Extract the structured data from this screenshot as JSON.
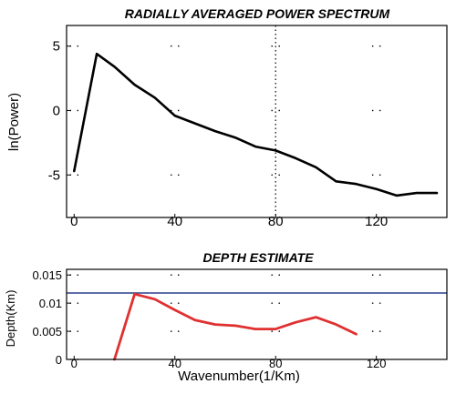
{
  "chart_data": [
    {
      "type": "line",
      "title": "RADIALLY AVERAGED POWER SPECTRUM",
      "xlabel": "",
      "ylabel": "ln(Power)",
      "xlim": [
        -3,
        148
      ],
      "ylim": [
        -8.3,
        6.6
      ],
      "x_ticks": [
        "0",
        "40",
        "80",
        "120"
      ],
      "x_tick_values": [
        0,
        40,
        80,
        120
      ],
      "y_ticks": [
        "5",
        "0",
        "-5"
      ],
      "y_tick_values": [
        5,
        0,
        -5
      ],
      "grid": "dotted",
      "series": [
        {
          "color": "#000000",
          "x": [
            0,
            9,
            16,
            24,
            32,
            40,
            48,
            56,
            64,
            72,
            80,
            88,
            96,
            104,
            112,
            120,
            128,
            136,
            144
          ],
          "y": [
            -4.7,
            4.4,
            3.4,
            2.0,
            1.0,
            -0.4,
            -1.0,
            -1.6,
            -2.1,
            -2.8,
            -3.1,
            -3.7,
            -4.4,
            -5.5,
            -5.7,
            -6.1,
            -6.6,
            -6.4,
            -6.4
          ]
        }
      ],
      "vline_x": 80
    },
    {
      "type": "line",
      "title": "DEPTH ESTIMATE",
      "xlabel": "Wavenumber(1/Km)",
      "ylabel": "Depth(Km)",
      "xlim": [
        -3,
        148
      ],
      "ylim": [
        0,
        0.016
      ],
      "x_ticks": [
        "0",
        "40",
        "80",
        "120"
      ],
      "x_tick_values": [
        0,
        40,
        80,
        120
      ],
      "y_ticks": [
        "0.015",
        "0.01",
        "0.005",
        "0"
      ],
      "y_tick_values": [
        0.015,
        0.01,
        0.005,
        0
      ],
      "grid": "dotted",
      "hline_y": 0.0118,
      "hline_color": "#2b3f8f",
      "series": [
        {
          "color": "#e03030",
          "x": [
            16,
            24,
            32,
            40,
            48,
            56,
            64,
            72,
            80,
            88,
            96,
            104,
            112
          ],
          "y": [
            0,
            0.0116,
            0.0107,
            0.0088,
            0.007,
            0.0062,
            0.006,
            0.0054,
            0.0054,
            0.0066,
            0.0075,
            0.0062,
            0.0045
          ]
        }
      ]
    }
  ]
}
